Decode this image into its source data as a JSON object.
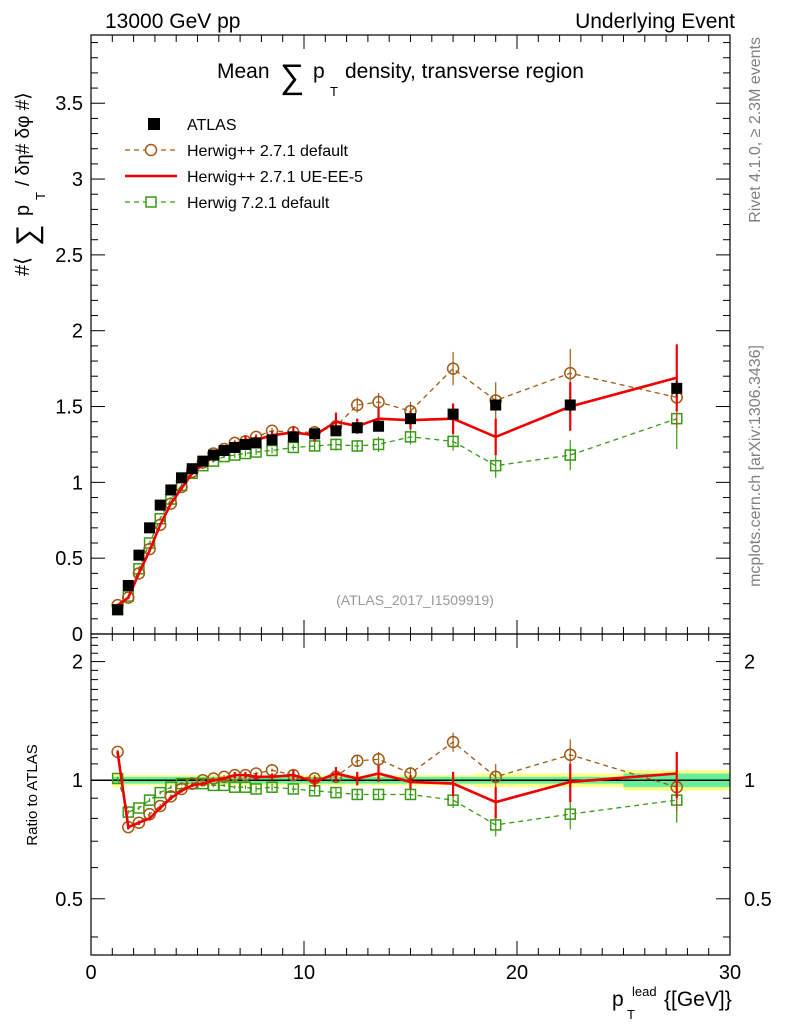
{
  "header": {
    "left": "13000 GeV pp",
    "right": "Underlying Event"
  },
  "side_labels": {
    "rivet": "Rivet 4.1.0, ≥ 2.3M events",
    "mcplots": "mcplots.cern.ch [arXiv:1306.3436]"
  },
  "colors": {
    "atlas": "#000000",
    "herwig271_default": "#a05a14",
    "herwig271_ueee5": "#ee0000",
    "herwig721_default": "#3a9a14",
    "band_yellow": "#ffff88",
    "band_green": "#66ee99"
  },
  "chart_data": [
    {
      "type": "line",
      "title": "Mean ∑ p_T density, transverse region",
      "title_parts": {
        "before": "Mean",
        "sum": "∑",
        "p": "p",
        "sub": "T",
        "after": "density, transverse region"
      },
      "ylabel_parts": {
        "a": "#⟨",
        "sum": "∑",
        "p": "p",
        "sub": "T",
        "b": "/ δη# δφ #⟩"
      },
      "xlabel_parts": {
        "p": "p",
        "sup": "lead",
        "sub": "T",
        "unit": "{[GeV]}"
      },
      "xlim": [
        0,
        30
      ],
      "ylim": [
        0,
        3.95
      ],
      "x_ticks": [
        0,
        10,
        20,
        30
      ],
      "y_ticks": [
        0,
        0.5,
        1,
        1.5,
        2,
        2.5,
        3,
        3.5
      ],
      "y_tick_labels": [
        "0",
        "0.5",
        "1",
        "1.5",
        "2",
        "2.5",
        "3",
        "3.5"
      ],
      "x_tick_labels": [
        "0",
        "10",
        "20",
        "30"
      ],
      "watermark": "(ATLAS_2017_I1509919)",
      "legend_position": "top-left",
      "series": [
        {
          "name": "ATLAS",
          "style": "square-filled",
          "x": [
            1.25,
            1.75,
            2.25,
            2.75,
            3.25,
            3.75,
            4.25,
            4.75,
            5.25,
            5.75,
            6.25,
            6.75,
            7.25,
            7.75,
            8.5,
            9.5,
            10.5,
            11.5,
            12.5,
            13.5,
            15,
            17,
            19,
            22.5,
            27.5
          ],
          "y": [
            0.16,
            0.32,
            0.52,
            0.7,
            0.85,
            0.95,
            1.03,
            1.09,
            1.14,
            1.18,
            1.21,
            1.23,
            1.25,
            1.26,
            1.28,
            1.3,
            1.32,
            1.34,
            1.36,
            1.37,
            1.42,
            1.45,
            1.51,
            1.51,
            1.62
          ],
          "yerr": [
            0.01,
            0.01,
            0.01,
            0.01,
            0.01,
            0.01,
            0.01,
            0.01,
            0.01,
            0.01,
            0.01,
            0.01,
            0.01,
            0.01,
            0.01,
            0.01,
            0.01,
            0.02,
            0.02,
            0.02,
            0.02,
            0.03,
            0.03,
            0.04,
            0.05
          ]
        },
        {
          "name": "Herwig++ 2.7.1 default",
          "style": "circle-open-dashed",
          "x": [
            1.25,
            1.75,
            2.25,
            2.75,
            3.25,
            3.75,
            4.25,
            4.75,
            5.25,
            5.75,
            6.25,
            6.75,
            7.25,
            7.75,
            8.5,
            9.5,
            10.5,
            11.5,
            12.5,
            13.5,
            15,
            17,
            19,
            22.5,
            27.5
          ],
          "y": [
            0.19,
            0.24,
            0.4,
            0.56,
            0.72,
            0.86,
            0.97,
            1.07,
            1.13,
            1.19,
            1.22,
            1.26,
            1.27,
            1.3,
            1.34,
            1.33,
            1.33,
            1.37,
            1.51,
            1.53,
            1.47,
            1.75,
            1.54,
            1.72,
            1.56
          ],
          "yerr": [
            0.01,
            0.01,
            0.01,
            0.01,
            0.01,
            0.01,
            0.01,
            0.01,
            0.01,
            0.01,
            0.01,
            0.02,
            0.02,
            0.02,
            0.02,
            0.02,
            0.03,
            0.04,
            0.05,
            0.06,
            0.06,
            0.11,
            0.12,
            0.16,
            0.2
          ]
        },
        {
          "name": "Herwig++ 2.7.1 UE-EE-5",
          "style": "line-solid-errors",
          "x": [
            1.25,
            1.75,
            2.25,
            2.75,
            3.25,
            3.75,
            4.25,
            4.75,
            5.25,
            5.75,
            6.25,
            6.75,
            7.25,
            7.75,
            8.5,
            9.5,
            10.5,
            11.5,
            12.5,
            13.5,
            15,
            17,
            19,
            22.5,
            27.5
          ],
          "y": [
            0.19,
            0.24,
            0.4,
            0.55,
            0.72,
            0.86,
            0.96,
            1.06,
            1.12,
            1.17,
            1.21,
            1.25,
            1.28,
            1.28,
            1.31,
            1.33,
            1.31,
            1.4,
            1.37,
            1.42,
            1.41,
            1.42,
            1.3,
            1.5,
            1.69
          ],
          "yerr": [
            0.01,
            0.01,
            0.01,
            0.01,
            0.01,
            0.01,
            0.01,
            0.01,
            0.01,
            0.01,
            0.02,
            0.02,
            0.03,
            0.03,
            0.03,
            0.04,
            0.04,
            0.06,
            0.05,
            0.07,
            0.06,
            0.1,
            0.12,
            0.16,
            0.22
          ]
        },
        {
          "name": "Herwig 7.2.1 default",
          "style": "square-open-dashed",
          "x": [
            1.25,
            1.75,
            2.25,
            2.75,
            3.25,
            3.75,
            4.25,
            4.75,
            5.25,
            5.75,
            6.25,
            6.75,
            7.25,
            7.75,
            8.5,
            9.5,
            10.5,
            11.5,
            12.5,
            13.5,
            15,
            17,
            19,
            22.5,
            27.5
          ],
          "y": [
            0.16,
            0.25,
            0.43,
            0.6,
            0.76,
            0.89,
            0.98,
            1.06,
            1.11,
            1.14,
            1.17,
            1.18,
            1.19,
            1.2,
            1.21,
            1.23,
            1.24,
            1.25,
            1.24,
            1.25,
            1.3,
            1.27,
            1.11,
            1.18,
            1.42
          ],
          "yerr": [
            0.01,
            0.01,
            0.01,
            0.01,
            0.01,
            0.01,
            0.01,
            0.01,
            0.01,
            0.01,
            0.01,
            0.02,
            0.02,
            0.02,
            0.02,
            0.02,
            0.03,
            0.04,
            0.04,
            0.05,
            0.05,
            0.06,
            0.08,
            0.1,
            0.2
          ]
        }
      ]
    },
    {
      "type": "line",
      "title": "",
      "ylabel": "Ratio to ATLAS",
      "xlabel": "p_T^lead {[GeV]}",
      "xlim": [
        0,
        30
      ],
      "ylim": [
        0.36,
        2.35
      ],
      "y_ticks": [
        0.5,
        1,
        2
      ],
      "y_tick_labels": [
        "0.5",
        "1",
        "2"
      ],
      "band_yellow_halfwidth": [
        0.04,
        0.03,
        0.03,
        0.03,
        0.03,
        0.03,
        0.03,
        0.03,
        0.03,
        0.03,
        0.03,
        0.03,
        0.03,
        0.03,
        0.03,
        0.03,
        0.03,
        0.03,
        0.03,
        0.03,
        0.03,
        0.03,
        0.04,
        0.04,
        0.06
      ],
      "band_green_halfwidth": [
        0.02,
        0.02,
        0.02,
        0.02,
        0.02,
        0.02,
        0.02,
        0.02,
        0.02,
        0.02,
        0.02,
        0.02,
        0.02,
        0.02,
        0.02,
        0.02,
        0.02,
        0.02,
        0.02,
        0.02,
        0.02,
        0.02,
        0.02,
        0.02,
        0.04
      ],
      "series": [
        {
          "name": "Herwig++ 2.7.1 default",
          "x": [
            1.25,
            1.75,
            2.25,
            2.75,
            3.25,
            3.75,
            4.25,
            4.75,
            5.25,
            5.75,
            6.25,
            6.75,
            7.25,
            7.75,
            8.5,
            9.5,
            10.5,
            11.5,
            12.5,
            13.5,
            15,
            17,
            19,
            22.5,
            27.5
          ],
          "y": [
            1.18,
            0.76,
            0.78,
            0.82,
            0.86,
            0.91,
            0.95,
            0.98,
            1.0,
            1.01,
            1.02,
            1.03,
            1.03,
            1.04,
            1.06,
            1.03,
            1.01,
            1.02,
            1.12,
            1.13,
            1.04,
            1.25,
            1.02,
            1.16,
            0.96
          ],
          "yerr": [
            0.01,
            0.01,
            0.01,
            0.01,
            0.01,
            0.01,
            0.01,
            0.01,
            0.01,
            0.01,
            0.01,
            0.01,
            0.01,
            0.01,
            0.01,
            0.01,
            0.02,
            0.03,
            0.04,
            0.05,
            0.04,
            0.07,
            0.08,
            0.11,
            0.13
          ]
        },
        {
          "name": "Herwig++ 2.7.1 UE-EE-5",
          "x": [
            1.25,
            1.75,
            2.25,
            2.75,
            3.25,
            3.75,
            4.25,
            4.75,
            5.25,
            5.75,
            6.25,
            6.75,
            7.25,
            7.75,
            8.5,
            9.5,
            10.5,
            11.5,
            12.5,
            13.5,
            15,
            17,
            19,
            22.5,
            27.5
          ],
          "y": [
            1.18,
            0.76,
            0.78,
            0.8,
            0.85,
            0.9,
            0.94,
            0.97,
            0.98,
            1.0,
            1.01,
            1.03,
            1.03,
            1.02,
            1.02,
            1.03,
            0.99,
            1.04,
            1.01,
            1.04,
            0.99,
            0.98,
            0.88,
            0.99,
            1.04
          ],
          "yerr": [
            0.01,
            0.01,
            0.01,
            0.01,
            0.01,
            0.01,
            0.01,
            0.01,
            0.01,
            0.01,
            0.01,
            0.02,
            0.02,
            0.02,
            0.02,
            0.03,
            0.03,
            0.04,
            0.04,
            0.05,
            0.04,
            0.07,
            0.08,
            0.11,
            0.14
          ]
        },
        {
          "name": "Herwig 7.2.1 default",
          "x": [
            1.25,
            1.75,
            2.25,
            2.75,
            3.25,
            3.75,
            4.25,
            4.75,
            5.25,
            5.75,
            6.25,
            6.75,
            7.25,
            7.75,
            8.5,
            9.5,
            10.5,
            11.5,
            12.5,
            13.5,
            15,
            17,
            19,
            22.5,
            27.5
          ],
          "y": [
            1.01,
            0.83,
            0.85,
            0.89,
            0.93,
            0.96,
            0.98,
            0.98,
            0.98,
            0.97,
            0.97,
            0.96,
            0.96,
            0.95,
            0.96,
            0.95,
            0.94,
            0.93,
            0.92,
            0.92,
            0.92,
            0.89,
            0.77,
            0.82,
            0.89
          ],
          "yerr": [
            0.01,
            0.01,
            0.01,
            0.01,
            0.01,
            0.01,
            0.01,
            0.01,
            0.01,
            0.01,
            0.01,
            0.01,
            0.01,
            0.02,
            0.02,
            0.02,
            0.02,
            0.03,
            0.03,
            0.03,
            0.03,
            0.04,
            0.05,
            0.07,
            0.11
          ]
        }
      ]
    }
  ]
}
